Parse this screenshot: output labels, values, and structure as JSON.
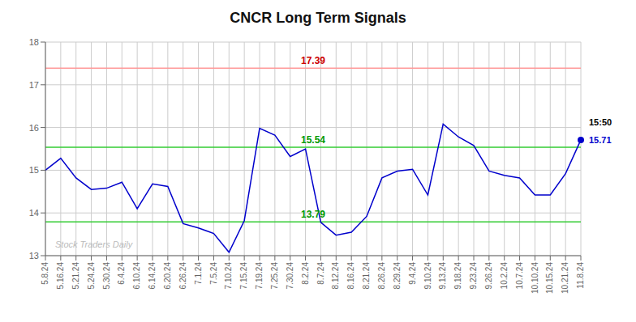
{
  "chart_data": {
    "type": "line",
    "title": "CNCR Long Term Signals",
    "categories": [
      "5.8.24",
      "5.16.24",
      "5.21.24",
      "5.24.24",
      "5.30.24",
      "6.4.24",
      "6.10.24",
      "6.14.24",
      "6.20.24",
      "6.26.24",
      "7.1.24",
      "7.5.24",
      "7.10.24",
      "7.15.24",
      "7.19.24",
      "7.25.24",
      "7.30.24",
      "8.2.24",
      "8.7.24",
      "8.12.24",
      "8.16.24",
      "8.21.24",
      "8.26.24",
      "8.29.24",
      "9.4.24",
      "9.10.24",
      "9.13.24",
      "9.18.24",
      "9.23.24",
      "9.26.24",
      "10.2.24",
      "10.7.24",
      "10.10.24",
      "10.15.24",
      "10.21.24",
      "11.8.24"
    ],
    "values": [
      15.0,
      15.28,
      14.82,
      14.55,
      14.58,
      14.72,
      14.1,
      14.68,
      14.62,
      13.75,
      13.65,
      13.52,
      13.08,
      13.82,
      15.98,
      15.82,
      15.32,
      15.5,
      13.78,
      13.48,
      13.55,
      13.92,
      14.82,
      14.98,
      15.02,
      14.42,
      16.08,
      15.78,
      15.58,
      14.98,
      14.88,
      14.82,
      14.42,
      14.42,
      14.92,
      15.71
    ],
    "color": "#0000cc",
    "ylim": [
      13,
      18
    ],
    "yticks": [
      13,
      14,
      15,
      16,
      17,
      18
    ],
    "grid": true,
    "annotations": [
      {
        "text": "17.39",
        "y": 17.39,
        "color": "#cc0000",
        "line_color": "#ff9999"
      },
      {
        "text": "15.54",
        "y": 15.54,
        "color": "#009900",
        "line_color": "#33cc33"
      },
      {
        "text": "13.79",
        "y": 13.79,
        "color": "#009900",
        "line_color": "#33cc33"
      },
      {
        "text": "15:50",
        "x": "11.8.24",
        "color": "#000000"
      },
      {
        "text": "15.71",
        "x": "11.8.24",
        "y": 15.71,
        "color": "#0000cc"
      },
      {
        "text": "Stock Traders Daily",
        "color": "#bbbbbb"
      }
    ]
  }
}
